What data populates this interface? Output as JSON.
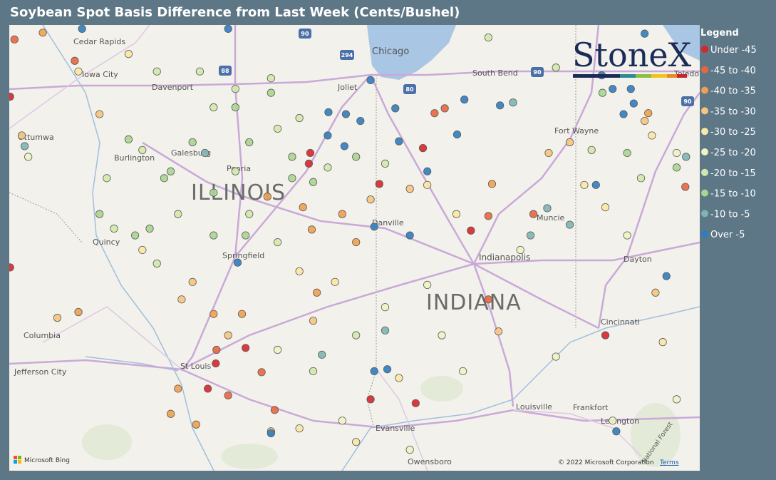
{
  "title": "Soybean Spot Basis Difference from Last Week (Cents/Bushel)",
  "logo": "StoneX",
  "legend": {
    "title": "Legend",
    "classes": [
      {
        "label": "Under -45",
        "color": "#d7262a"
      },
      {
        "label": "-45 to -40",
        "color": "#e8663f"
      },
      {
        "label": "-40 to -35",
        "color": "#f0a04e"
      },
      {
        "label": "-35 to -30",
        "color": "#f6c47e"
      },
      {
        "label": "-30 to -25",
        "color": "#fbe7a4"
      },
      {
        "label": "-25 to -20",
        "color": "#eef4c4"
      },
      {
        "label": "-20 to -15",
        "color": "#d2e8ab"
      },
      {
        "label": "-15 to -10",
        "color": "#a9d590"
      },
      {
        "label": "-10 to -5",
        "color": "#7eb5b2"
      },
      {
        "label": "Over -5",
        "color": "#2f7dc0"
      }
    ]
  },
  "map": {
    "places": [
      "Cedar Rapids",
      "Iowa City",
      "Davenport",
      "Chicago",
      "South Bend",
      "Toledo",
      "Joliet",
      "Ottumwa",
      "Burlington",
      "Galesburg",
      "Peoria",
      "ILLINOIS",
      "Fort Wayne",
      "Danville",
      "Muncie",
      "Quincy",
      "Springfield",
      "Indianapolis",
      "Dayton",
      "INDIANA",
      "Columbia",
      "Cincinnati",
      "Jefferson City",
      "St Louis",
      "Louisville",
      "Frankfort",
      "Lexington",
      "Evansville",
      "Owensboro",
      "National Forest"
    ],
    "shields": [
      "90",
      "294",
      "88",
      "80",
      "90",
      "90"
    ],
    "points": [
      {
        "lon": -88.48,
        "lat": 40.84,
        "class": 0
      },
      {
        "lon": -88.5,
        "lat": 40.73,
        "class": 0
      },
      {
        "lon": -89.78,
        "lat": 38.67,
        "class": 0
      },
      {
        "lon": -89.37,
        "lat": 38.83,
        "class": 0
      },
      {
        "lon": -89.89,
        "lat": 38.41,
        "class": 0
      },
      {
        "lon": -87.65,
        "lat": 38.3,
        "class": 0
      },
      {
        "lon": -87.03,
        "lat": 38.26,
        "class": 0
      },
      {
        "lon": -84.42,
        "lat": 38.96,
        "class": 0
      },
      {
        "lon": -86.27,
        "lat": 40.04,
        "class": 0
      },
      {
        "lon": -92.61,
        "lat": 39.66,
        "class": 0
      },
      {
        "lon": -92.61,
        "lat": 41.42,
        "class": 0
      },
      {
        "lon": -86.93,
        "lat": 40.89,
        "class": 0
      },
      {
        "lon": -87.53,
        "lat": 40.52,
        "class": 0
      },
      {
        "lon": -89.61,
        "lat": 38.34,
        "class": 1
      },
      {
        "lon": -89.15,
        "lat": 38.58,
        "class": 1
      },
      {
        "lon": -86.03,
        "lat": 39.33,
        "class": 1
      },
      {
        "lon": -86.03,
        "lat": 40.19,
        "class": 1
      },
      {
        "lon": -86.77,
        "lat": 41.25,
        "class": 1
      },
      {
        "lon": -86.63,
        "lat": 41.3,
        "class": 1
      },
      {
        "lon": -85.41,
        "lat": 40.21,
        "class": 1
      },
      {
        "lon": -88.97,
        "lat": 38.19,
        "class": 1
      },
      {
        "lon": -89.77,
        "lat": 38.81,
        "class": 1
      },
      {
        "lon": -83.32,
        "lat": 40.49,
        "class": 1
      },
      {
        "lon": -91.72,
        "lat": 41.79,
        "class": 1
      },
      {
        "lon": -92.55,
        "lat": 42.01,
        "class": 1
      },
      {
        "lon": -89.07,
        "lat": 40.39,
        "class": 2
      },
      {
        "lon": -88.46,
        "lat": 40.05,
        "class": 2
      },
      {
        "lon": -87.85,
        "lat": 39.92,
        "class": 2
      },
      {
        "lon": -90.4,
        "lat": 38.15,
        "class": 2
      },
      {
        "lon": -90.05,
        "lat": 38.04,
        "class": 2
      },
      {
        "lon": -90.3,
        "lat": 38.41,
        "class": 2
      },
      {
        "lon": -88.39,
        "lat": 39.4,
        "class": 2
      },
      {
        "lon": -88.04,
        "lat": 40.21,
        "class": 2
      },
      {
        "lon": -85.98,
        "lat": 40.52,
        "class": 2
      },
      {
        "lon": -83.83,
        "lat": 41.25,
        "class": 2
      },
      {
        "lon": -92.16,
        "lat": 42.08,
        "class": 2
      },
      {
        "lon": -91.67,
        "lat": 39.2,
        "class": 2
      },
      {
        "lon": -89.81,
        "lat": 39.18,
        "class": 2
      },
      {
        "lon": -89.42,
        "lat": 39.18,
        "class": 2
      },
      {
        "lon": -88.58,
        "lat": 40.28,
        "class": 2
      },
      {
        "lon": -90.1,
        "lat": 39.51,
        "class": 3
      },
      {
        "lon": -90.25,
        "lat": 39.33,
        "class": 3
      },
      {
        "lon": -89.61,
        "lat": 38.96,
        "class": 3
      },
      {
        "lon": -88.44,
        "lat": 39.11,
        "class": 3
      },
      {
        "lon": -87.65,
        "lat": 40.36,
        "class": 3
      },
      {
        "lon": -87.11,
        "lat": 40.47,
        "class": 3
      },
      {
        "lon": -85.2,
        "lat": 40.84,
        "class": 3
      },
      {
        "lon": -84.91,
        "lat": 40.95,
        "class": 3
      },
      {
        "lon": -83.88,
        "lat": 41.17,
        "class": 3
      },
      {
        "lon": -83.73,
        "lat": 39.4,
        "class": 3
      },
      {
        "lon": -85.89,
        "lat": 39.0,
        "class": 3
      },
      {
        "lon": -91.38,
        "lat": 41.24,
        "class": 3
      },
      {
        "lon": -92.45,
        "lat": 41.02,
        "class": 3
      },
      {
        "lon": -89.02,
        "lat": 37.97,
        "class": 3
      },
      {
        "lon": -91.96,
        "lat": 39.14,
        "class": 3
      },
      {
        "lon": -88.63,
        "lat": 39.62,
        "class": 4
      },
      {
        "lon": -88.14,
        "lat": 39.51,
        "class": 4
      },
      {
        "lon": -84.71,
        "lat": 40.51,
        "class": 4
      },
      {
        "lon": -84.42,
        "lat": 40.28,
        "class": 4
      },
      {
        "lon": -83.78,
        "lat": 41.02,
        "class": 4
      },
      {
        "lon": -86.87,
        "lat": 40.51,
        "class": 4
      },
      {
        "lon": -86.47,
        "lat": 40.21,
        "class": 4
      },
      {
        "lon": -83.63,
        "lat": 38.89,
        "class": 4
      },
      {
        "lon": -88.63,
        "lat": 38.0,
        "class": 4
      },
      {
        "lon": -87.85,
        "lat": 37.86,
        "class": 4
      },
      {
        "lon": -87.26,
        "lat": 38.52,
        "class": 4
      },
      {
        "lon": -90.98,
        "lat": 41.86,
        "class": 4
      },
      {
        "lon": -91.67,
        "lat": 41.68,
        "class": 4
      },
      {
        "lon": -90.79,
        "lat": 39.84,
        "class": 4
      },
      {
        "lon": -86.87,
        "lat": 39.48,
        "class": 5
      },
      {
        "lon": -86.67,
        "lat": 38.96,
        "class": 5
      },
      {
        "lon": -85.59,
        "lat": 39.84,
        "class": 5
      },
      {
        "lon": -84.12,
        "lat": 39.99,
        "class": 5
      },
      {
        "lon": -83.44,
        "lat": 40.84,
        "class": 5
      },
      {
        "lon": -87.45,
        "lat": 39.25,
        "class": 5
      },
      {
        "lon": -88.04,
        "lat": 38.08,
        "class": 5
      },
      {
        "lon": -87.11,
        "lat": 37.78,
        "class": 5
      },
      {
        "lon": -86.38,
        "lat": 38.59,
        "class": 5
      },
      {
        "lon": -84.32,
        "lat": 38.08,
        "class": 5
      },
      {
        "lon": -85.1,
        "lat": 38.74,
        "class": 5
      },
      {
        "lon": -88.93,
        "lat": 38.81,
        "class": 5
      },
      {
        "lon": -83.44,
        "lat": 38.3,
        "class": 5
      },
      {
        "lon": -92.36,
        "lat": 40.8,
        "class": 5
      },
      {
        "lon": -89.81,
        "lat": 41.31,
        "class": 6
      },
      {
        "lon": -89.51,
        "lat": 41.5,
        "class": 6
      },
      {
        "lon": -89.02,
        "lat": 41.61,
        "class": 6
      },
      {
        "lon": -88.93,
        "lat": 41.09,
        "class": 6
      },
      {
        "lon": -88.24,
        "lat": 40.69,
        "class": 6
      },
      {
        "lon": -89.32,
        "lat": 40.21,
        "class": 6
      },
      {
        "lon": -90.3,
        "lat": 40.21,
        "class": 6
      },
      {
        "lon": -90.59,
        "lat": 39.7,
        "class": 6
      },
      {
        "lon": -91.28,
        "lat": 40.58,
        "class": 6
      },
      {
        "lon": -90.79,
        "lat": 40.87,
        "class": 6
      },
      {
        "lon": -90.0,
        "lat": 41.68,
        "class": 6
      },
      {
        "lon": -88.63,
        "lat": 41.2,
        "class": 6
      },
      {
        "lon": -86.03,
        "lat": 42.03,
        "class": 6
      },
      {
        "lon": -85.1,
        "lat": 41.72,
        "class": 6
      },
      {
        "lon": -84.61,
        "lat": 40.87,
        "class": 6
      },
      {
        "lon": -83.93,
        "lat": 40.58,
        "class": 6
      },
      {
        "lon": -88.44,
        "lat": 38.59,
        "class": 6
      },
      {
        "lon": -87.85,
        "lat": 38.96,
        "class": 6
      },
      {
        "lon": -87.45,
        "lat": 40.73,
        "class": 6
      },
      {
        "lon": -91.18,
        "lat": 40.06,
        "class": 6
      },
      {
        "lon": -89.51,
        "lat": 40.65,
        "class": 6
      },
      {
        "lon": -88.93,
        "lat": 39.92,
        "class": 6
      },
      {
        "lon": -90.59,
        "lat": 41.68,
        "class": 6
      },
      {
        "lon": -89.02,
        "lat": 41.46,
        "class": 7
      },
      {
        "lon": -89.51,
        "lat": 41.31,
        "class": 7
      },
      {
        "lon": -89.32,
        "lat": 40.95,
        "class": 7
      },
      {
        "lon": -88.73,
        "lat": 40.58,
        "class": 7
      },
      {
        "lon": -88.44,
        "lat": 40.54,
        "class": 7
      },
      {
        "lon": -90.49,
        "lat": 40.58,
        "class": 7
      },
      {
        "lon": -90.69,
        "lat": 40.06,
        "class": 7
      },
      {
        "lon": -89.81,
        "lat": 39.99,
        "class": 7
      },
      {
        "lon": -89.37,
        "lat": 39.99,
        "class": 7
      },
      {
        "lon": -90.98,
        "lat": 40.98,
        "class": 7
      },
      {
        "lon": -90.1,
        "lat": 40.95,
        "class": 7
      },
      {
        "lon": -90.89,
        "lat": 39.99,
        "class": 7
      },
      {
        "lon": -91.38,
        "lat": 40.21,
        "class": 7
      },
      {
        "lon": -89.81,
        "lat": 40.43,
        "class": 7
      },
      {
        "lon": -88.73,
        "lat": 40.8,
        "class": 7
      },
      {
        "lon": -87.85,
        "lat": 40.8,
        "class": 7
      },
      {
        "lon": -84.12,
        "lat": 40.84,
        "class": 7
      },
      {
        "lon": -83.44,
        "lat": 40.69,
        "class": 7
      },
      {
        "lon": -84.46,
        "lat": 41.46,
        "class": 7
      },
      {
        "lon": -90.4,
        "lat": 40.65,
        "class": 7
      },
      {
        "lon": -89.93,
        "lat": 40.84,
        "class": 8
      },
      {
        "lon": -88.32,
        "lat": 38.76,
        "class": 8
      },
      {
        "lon": -85.22,
        "lat": 40.27,
        "class": 8
      },
      {
        "lon": -85.45,
        "lat": 39.99,
        "class": 8
      },
      {
        "lon": -85.69,
        "lat": 41.36,
        "class": 8
      },
      {
        "lon": -83.31,
        "lat": 40.8,
        "class": 8
      },
      {
        "lon": -87.45,
        "lat": 39.01,
        "class": 8
      },
      {
        "lon": -92.41,
        "lat": 40.91,
        "class": 8
      },
      {
        "lon": -84.91,
        "lat": 40.1,
        "class": 8
      },
      {
        "lon": -83.88,
        "lat": 42.07,
        "class": 9
      },
      {
        "lon": -84.07,
        "lat": 41.5,
        "class": 9
      },
      {
        "lon": -84.32,
        "lat": 41.5,
        "class": 9
      },
      {
        "lon": -84.17,
        "lat": 41.24,
        "class": 9
      },
      {
        "lon": -84.03,
        "lat": 41.35,
        "class": 9
      },
      {
        "lon": -84.47,
        "lat": 41.64,
        "class": 9
      },
      {
        "lon": -84.55,
        "lat": 40.51,
        "class": 9
      },
      {
        "lon": -83.58,
        "lat": 39.57,
        "class": 9
      },
      {
        "lon": -84.27,
        "lat": 37.97,
        "class": 9
      },
      {
        "lon": -86.36,
        "lat": 41.39,
        "class": 9
      },
      {
        "lon": -85.87,
        "lat": 41.33,
        "class": 9
      },
      {
        "lon": -86.46,
        "lat": 41.03,
        "class": 9
      },
      {
        "lon": -86.87,
        "lat": 40.65,
        "class": 9
      },
      {
        "lon": -87.11,
        "lat": 39.99,
        "class": 9
      },
      {
        "lon": -87.6,
        "lat": 40.08,
        "class": 9
      },
      {
        "lon": -87.6,
        "lat": 38.59,
        "class": 9
      },
      {
        "lon": -87.42,
        "lat": 38.61,
        "class": 9
      },
      {
        "lon": -89.02,
        "lat": 37.95,
        "class": 9
      },
      {
        "lon": -89.48,
        "lat": 39.71,
        "class": 9
      },
      {
        "lon": -89.61,
        "lat": 42.12,
        "class": 9
      },
      {
        "lon": -91.62,
        "lat": 42.12,
        "class": 9
      },
      {
        "lon": -88.23,
        "lat": 41.26,
        "class": 9
      },
      {
        "lon": -87.99,
        "lat": 41.24,
        "class": 9
      },
      {
        "lon": -87.79,
        "lat": 41.17,
        "class": 9
      },
      {
        "lon": -88.24,
        "lat": 41.02,
        "class": 9
      },
      {
        "lon": -87.65,
        "lat": 41.59,
        "class": 9
      },
      {
        "lon": -87.31,
        "lat": 41.3,
        "class": 9
      },
      {
        "lon": -88.01,
        "lat": 40.91,
        "class": 9
      },
      {
        "lon": -87.26,
        "lat": 40.96,
        "class": 9
      }
    ]
  },
  "attribution": {
    "bing": "Microsoft Bing",
    "copyright": "© 2022 Microsoft Corporation",
    "terms": "Terms"
  }
}
